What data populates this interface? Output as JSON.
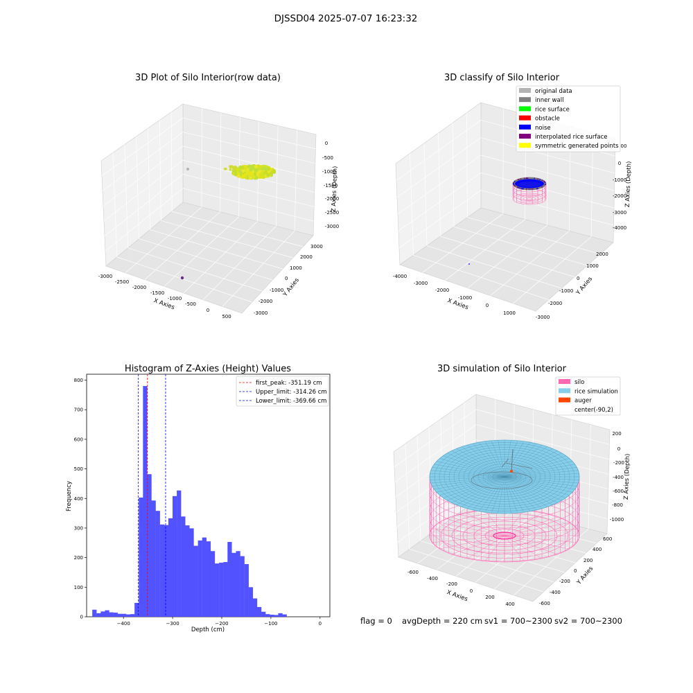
{
  "figure": {
    "title": "DJSSD04 2025-07-07 16:23:32"
  },
  "status": {
    "flag": "flag = 0",
    "avg_depth": "avgDepth = 220 cm",
    "sv1": "sv1 = 700~2300",
    "sv2": "sv2 = 700~2300"
  },
  "panels": {
    "raw": {
      "title": "3D Plot of Silo Interior(row data)",
      "xlabel": "X Axies",
      "ylabel": "Y Axies",
      "zlabel": "Z Axies (Depth)",
      "xticks": [
        "-3000",
        "-2500",
        "-2000",
        "-1500",
        "-1000",
        "-500",
        "0",
        "500"
      ],
      "yticks": [
        "-3000",
        "-2000",
        "-1000",
        "0",
        "1000",
        "2000",
        "3000"
      ],
      "zticks": [
        "0",
        "-500",
        "-1000",
        "-1500",
        "-2000",
        "-2500",
        "-3000"
      ]
    },
    "classify": {
      "title": "3D classify of Silo Interior",
      "xlabel": "X Axies",
      "ylabel": "Y Axies",
      "zlabel": "Z Axies (Depth)",
      "xticks": [
        "-4000",
        "-3000",
        "-2000",
        "-1000",
        "0",
        "1000"
      ],
      "yticks": [
        "-3000",
        "-2000",
        "-1000",
        "0",
        "1000",
        "2000"
      ],
      "zticks": [
        "0",
        "-1000",
        "-2000",
        "-3000",
        "-4000"
      ],
      "z_extra_tick": "00",
      "legend": [
        {
          "label": "original data",
          "color": "#b3b3b3"
        },
        {
          "label": "inner wall",
          "color": "#808080"
        },
        {
          "label": "rice surface",
          "color": "#00ff00"
        },
        {
          "label": "obstacle",
          "color": "#ff0000"
        },
        {
          "label": "noise",
          "color": "#0000ff"
        },
        {
          "label": "interpolated rice surface",
          "color": "#800080"
        },
        {
          "label": "symmetric generated points",
          "color": "#ffff00"
        }
      ]
    },
    "simulation": {
      "title": "3D simulation of Silo Interior",
      "xlabel": "X Axies",
      "ylabel": "Y Axies",
      "zlabel": "Z Axies (Depth)",
      "xticks": [
        "-600",
        "-400",
        "-200",
        "0",
        "200",
        "400"
      ],
      "yticks": [
        "-600",
        "-400",
        "-200",
        "0",
        "200",
        "400",
        "600"
      ],
      "zticks": [
        "200",
        "0",
        "-200",
        "-400",
        "-600",
        "-800",
        "-1000"
      ],
      "legend": [
        {
          "label": "silo",
          "color": "#ff69b4"
        },
        {
          "label": "rice simulation",
          "color": "#87ceeb"
        },
        {
          "label": "auger",
          "color": "#ff4500"
        },
        {
          "label": "center(-90,2)",
          "color": ""
        }
      ]
    }
  },
  "chart_data": {
    "type": "bar",
    "title": "Histogram of Z-Axies (Height) Values",
    "xlabel": "Depth (cm)",
    "ylabel": "Frequency",
    "xlim": [
      -475,
      20
    ],
    "ylim": [
      0,
      820
    ],
    "xticks": [
      -400,
      -300,
      -200,
      -100,
      0
    ],
    "yticks": [
      0,
      100,
      200,
      300,
      400,
      500,
      600,
      700,
      800
    ],
    "color": "#4c4cff",
    "bins": {
      "start": -463.5,
      "width": 8.6,
      "values": [
        24,
        12,
        18,
        22,
        15,
        14,
        10,
        10,
        8,
        9,
        47,
        403,
        780,
        482,
        393,
        358,
        312,
        310,
        333,
        408,
        427,
        339,
        309,
        299,
        240,
        258,
        268,
        255,
        222,
        180,
        183,
        185,
        253,
        216,
        222,
        205,
        178,
        100,
        62,
        33,
        17,
        9,
        7,
        6,
        12,
        8
      ]
    },
    "vlines": [
      {
        "x": -351.19,
        "color": "#ff0000",
        "label": "first_peak: -351.19 cm"
      },
      {
        "x": -314.26,
        "color": "#0000ff",
        "label": "Upper_limit: -314.26 cm"
      },
      {
        "x": -369.66,
        "color": "#0000ff",
        "label": "Lower_limit: -369.66 cm"
      }
    ],
    "legend_position": "upper right"
  }
}
